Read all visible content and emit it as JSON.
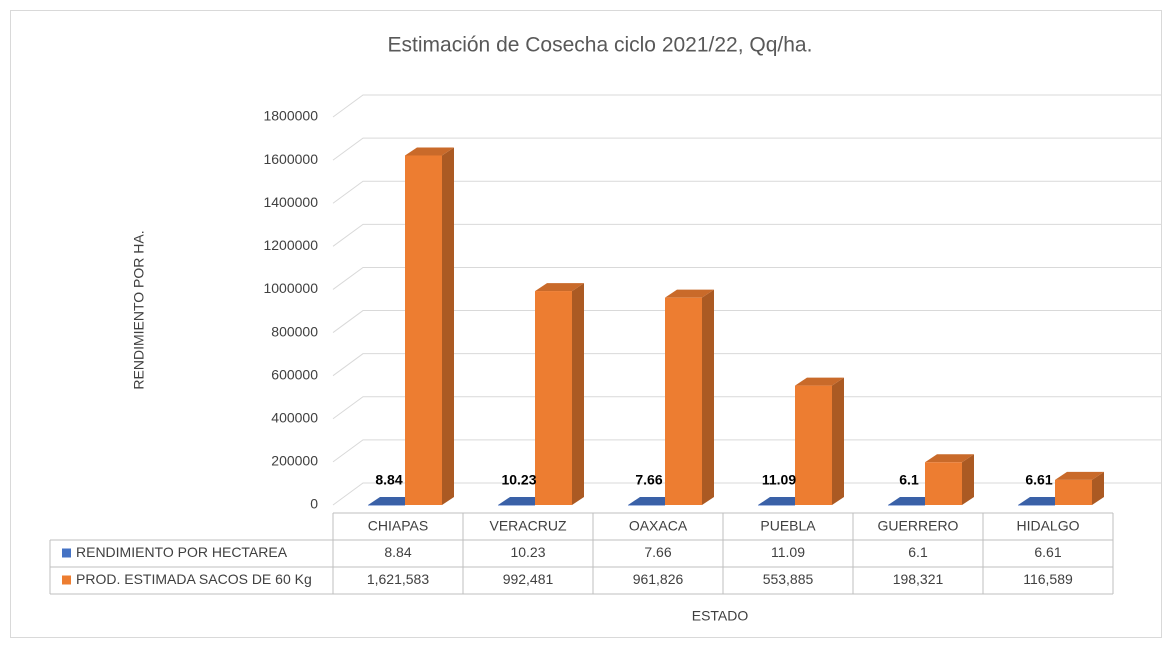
{
  "chart_data": {
    "type": "bar3d",
    "title": "Estimación de Cosecha ciclo 2021/22, Qq/ha.",
    "y_label": "RENDIMIENTO POR HA.",
    "x_label": "ESTADO",
    "categories": [
      "CHIAPAS",
      "VERACRUZ",
      "OAXACA",
      "PUEBLA",
      "GUERRERO",
      "HIDALGO"
    ],
    "series": [
      {
        "name": "RENDIMIENTO POR HECTAREA",
        "color": "#4472c4",
        "values": [
          8.84,
          10.23,
          7.66,
          11.09,
          6.1,
          6.61
        ]
      },
      {
        "name": "PROD. ESTIMADA SACOS DE 60 Kg",
        "color": "#ed7d31",
        "values": [
          1621583,
          992481,
          961826,
          553885,
          198321,
          116589
        ],
        "value_labels": [
          "1,621,583",
          "992,481",
          "961,826",
          "553,885",
          "198,321",
          "116,589"
        ]
      }
    ],
    "ylim": [
      0,
      1800000
    ],
    "yticks": [
      0,
      200000,
      400000,
      600000,
      800000,
      1000000,
      1200000,
      1400000,
      1600000,
      1800000
    ],
    "grid": true,
    "data_table": true
  }
}
